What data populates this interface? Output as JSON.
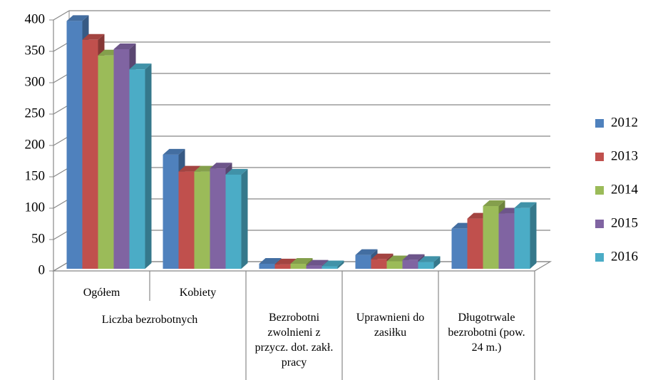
{
  "chart_data": {
    "type": "bar3d",
    "categories": [
      "Ogółem",
      "Kobiety",
      "Bezrobotni zwolnieni z przycz. dot. zakł. pracy",
      "Uprawnieni do zasiłku",
      "Długotrwale bezrobotni (pow. 24 m.)"
    ],
    "category_group": {
      "label": "Liczba bezrobotnych",
      "count": 2
    },
    "series": [
      {
        "name": "2012",
        "color": "#4f81bd",
        "values": [
          395,
          182,
          8,
          22,
          64
        ]
      },
      {
        "name": "2013",
        "color": "#c0504d",
        "values": [
          365,
          155,
          7,
          15,
          80
        ]
      },
      {
        "name": "2014",
        "color": "#9bbb59",
        "values": [
          340,
          155,
          8,
          12,
          100
        ]
      },
      {
        "name": "2015",
        "color": "#8064a2",
        "values": [
          350,
          160,
          5,
          14,
          88
        ]
      },
      {
        "name": "2016",
        "color": "#4bacc6",
        "values": [
          318,
          150,
          4,
          11,
          97
        ]
      }
    ],
    "ylim": [
      0,
      400
    ],
    "yticks": [
      0,
      50,
      100,
      150,
      200,
      250,
      300,
      350,
      400
    ],
    "grid": true,
    "legend": "right"
  }
}
